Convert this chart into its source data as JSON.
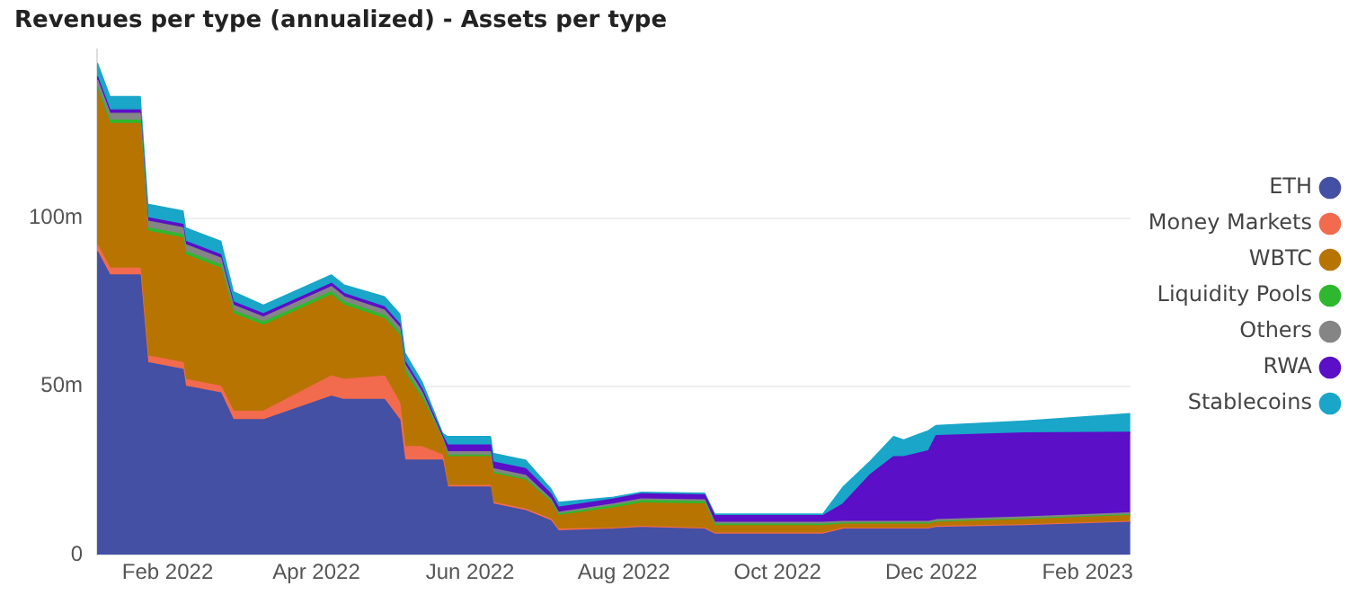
{
  "chart_data": {
    "type": "area",
    "title": "Revenues per type (annualized) - Assets per type",
    "stacked": true,
    "legend": "right",
    "grid": "y",
    "marker": "none",
    "x": [
      "2022-01-04",
      "2022-01-09",
      "2022-01-21",
      "2022-01-24",
      "2022-02-07",
      "2022-02-08",
      "2022-02-22",
      "2022-02-27",
      "2022-03-11",
      "2022-04-07",
      "2022-04-12",
      "2022-04-28",
      "2022-05-04",
      "2022-05-06",
      "2022-05-13",
      "2022-05-21",
      "2022-05-23",
      "2022-06-09",
      "2022-06-10",
      "2022-06-23",
      "2022-07-03",
      "2022-07-06",
      "2022-07-28",
      "2022-08-08",
      "2022-09-02",
      "2022-09-06",
      "2022-10-19",
      "2022-10-27",
      "2022-11-07",
      "2022-11-16",
      "2022-11-20",
      "2022-11-30",
      "2022-12-03",
      "2023-01-07",
      "2023-02-18"
    ],
    "xlim": [
      "2022-01-04",
      "2023-02-18"
    ],
    "xticks": [
      {
        "value": "2022-02-01",
        "label": "Feb 2022"
      },
      {
        "value": "2022-04-01",
        "label": "Apr 2022"
      },
      {
        "value": "2022-06-01",
        "label": "Jun 2022"
      },
      {
        "value": "2022-08-01",
        "label": "Aug 2022"
      },
      {
        "value": "2022-10-01",
        "label": "Oct 2022"
      },
      {
        "value": "2022-12-01",
        "label": "Dec 2022"
      },
      {
        "value": "2023-02-01",
        "label": "Feb 2023"
      }
    ],
    "ylim": [
      0,
      150
    ],
    "yticks": [
      0,
      {
        "value": 50,
        "label": "50m"
      },
      {
        "value": 100,
        "label": "100m"
      }
    ],
    "series": [
      {
        "name": "ETH",
        "color": "#4450a3",
        "values": [
          90,
          83,
          83,
          57,
          55,
          50,
          48,
          40,
          40,
          47,
          46,
          46,
          40,
          28,
          28,
          28,
          20,
          20,
          15,
          13,
          10,
          7,
          7.5,
          8,
          7.5,
          6,
          6,
          7.5,
          7.5,
          7.5,
          7.5,
          7.5,
          8,
          8.5,
          9.5
        ]
      },
      {
        "name": "Money Markets",
        "color": "#f26b4e",
        "values": [
          2,
          2,
          2,
          2,
          2,
          2,
          2,
          2.5,
          2.5,
          6,
          6,
          7,
          5,
          4,
          4,
          1.5,
          0.5,
          0.5,
          0.5,
          0.5,
          0.5,
          0.5,
          0.3,
          0.3,
          0.3,
          0.3,
          0.3,
          0.3,
          0.3,
          0.3,
          0.3,
          0.3,
          0.3,
          0.3,
          0.3
        ]
      },
      {
        "name": "WBTC",
        "color": "#b87400",
        "values": [
          46,
          43,
          43,
          37,
          37,
          37,
          35,
          29,
          25.5,
          24,
          22,
          17,
          20,
          22,
          14,
          4.5,
          8.5,
          8.5,
          8.5,
          8.5,
          5,
          4,
          6,
          7,
          7.2,
          2.2,
          2.2,
          1.2,
          1.2,
          1.2,
          1.2,
          1.2,
          1.2,
          1.5,
          1.7
        ]
      },
      {
        "name": "Liquidity Pools",
        "color": "#2fb82f",
        "values": [
          1,
          1,
          1,
          1,
          1,
          1,
          1,
          1,
          1,
          1,
          1,
          1,
          1,
          1,
          1,
          0.3,
          0.5,
          0.5,
          0.5,
          0.5,
          0.5,
          0.5,
          0.7,
          0.7,
          0.7,
          0.5,
          0.5,
          0.3,
          0.3,
          0.3,
          0.3,
          0.3,
          0.3,
          0.3,
          0.3
        ]
      },
      {
        "name": "Others",
        "color": "#858585",
        "values": [
          2,
          2,
          2,
          2,
          2,
          2,
          2,
          1.5,
          1.5,
          1.5,
          1.5,
          1.5,
          1.5,
          1.5,
          1,
          0.3,
          1,
          1,
          1,
          1,
          0.5,
          0.5,
          0.5,
          0.5,
          0.5,
          0.5,
          0.5,
          0.5,
          0.5,
          0.5,
          0.5,
          0.5,
          0.5,
          0.5,
          0.5
        ]
      },
      {
        "name": "RWA",
        "color": "#5b0fc7",
        "values": [
          1,
          1,
          1,
          1,
          1,
          1,
          1,
          1,
          1,
          1,
          1,
          1,
          1,
          1,
          1,
          0.7,
          2,
          2,
          2,
          2,
          1.5,
          1.5,
          1.5,
          1.5,
          1.5,
          2,
          2,
          5.2,
          14,
          19.2,
          19.2,
          21,
          25,
          25,
          24
        ]
      },
      {
        "name": "Stablecoins",
        "color": "#19a6c9",
        "values": [
          4,
          4,
          4,
          4,
          4,
          4,
          4,
          3,
          2.5,
          2.5,
          2.5,
          3,
          3,
          2.5,
          2,
          0.7,
          2.5,
          2.5,
          2.5,
          2.5,
          1.5,
          1.5,
          0.5,
          0.5,
          0.5,
          0.5,
          0.5,
          5,
          4,
          6,
          5,
          6,
          3,
          3.5,
          5.5
        ]
      }
    ]
  }
}
